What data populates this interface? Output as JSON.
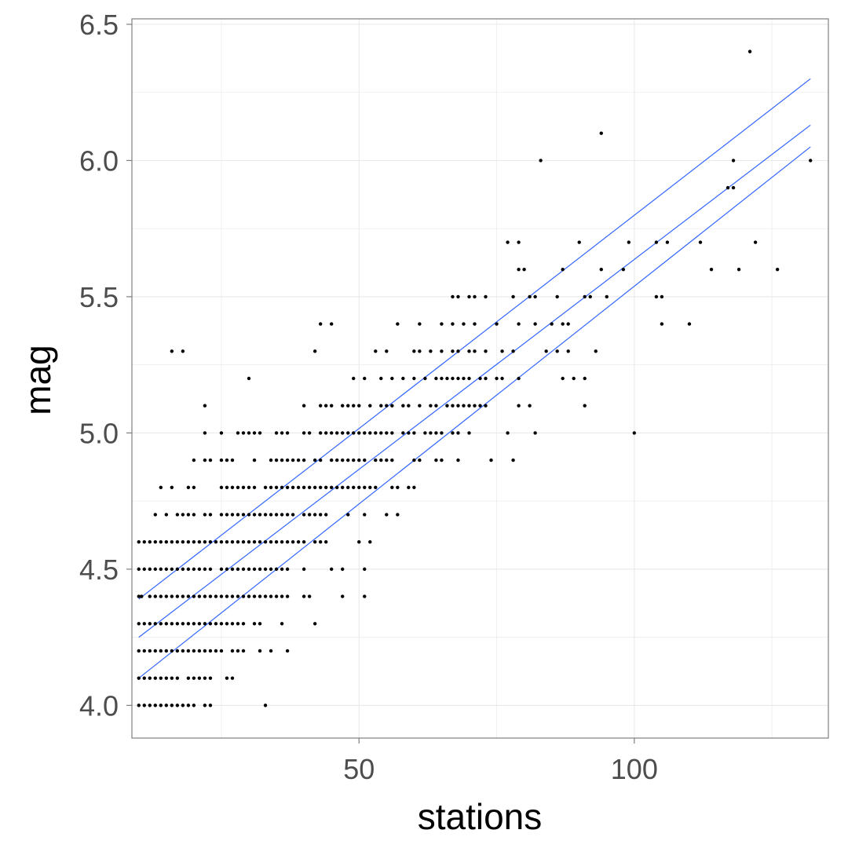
{
  "chart_data": {
    "type": "scatter",
    "title": "",
    "xlabel": "stations",
    "ylabel": "mag",
    "xlim": [
      8.75,
      135.25
    ],
    "ylim": [
      3.88,
      6.52
    ],
    "x_ticks": [
      50,
      100
    ],
    "x_tick_labels": [
      "50",
      "100"
    ],
    "y_ticks": [
      4.0,
      4.5,
      5.0,
      5.5,
      6.0,
      6.5
    ],
    "y_tick_labels": [
      "4.0",
      "4.5",
      "5.0",
      "5.5",
      "6.0",
      "6.5"
    ],
    "grid": true,
    "legend": "none",
    "colors": {
      "points": "#000000",
      "lines": "#3366ff",
      "grid": "#ebebeb",
      "border": "#7f7f7f"
    },
    "points": [
      [
        10,
        4.0
      ],
      [
        11,
        4.0
      ],
      [
        12,
        4.0
      ],
      [
        13,
        4.0
      ],
      [
        14,
        4.0
      ],
      [
        15,
        4.0
      ],
      [
        16,
        4.0
      ],
      [
        17,
        4.0
      ],
      [
        18,
        4.0
      ],
      [
        19,
        4.0
      ],
      [
        20,
        4.0
      ],
      [
        22,
        4.0
      ],
      [
        23,
        4.0
      ],
      [
        33,
        4.0
      ],
      [
        10,
        4.1
      ],
      [
        11,
        4.1
      ],
      [
        12,
        4.1
      ],
      [
        13,
        4.1
      ],
      [
        14,
        4.1
      ],
      [
        15,
        4.1
      ],
      [
        16,
        4.1
      ],
      [
        17,
        4.1
      ],
      [
        19,
        4.1
      ],
      [
        20,
        4.1
      ],
      [
        21,
        4.1
      ],
      [
        22,
        4.1
      ],
      [
        23,
        4.1
      ],
      [
        26,
        4.1
      ],
      [
        27,
        4.1
      ],
      [
        10,
        4.2
      ],
      [
        11,
        4.2
      ],
      [
        12,
        4.2
      ],
      [
        13,
        4.2
      ],
      [
        14,
        4.2
      ],
      [
        15,
        4.2
      ],
      [
        16,
        4.2
      ],
      [
        17,
        4.2
      ],
      [
        18,
        4.2
      ],
      [
        19,
        4.2
      ],
      [
        20,
        4.2
      ],
      [
        21,
        4.2
      ],
      [
        22,
        4.2
      ],
      [
        23,
        4.2
      ],
      [
        24,
        4.2
      ],
      [
        25,
        4.2
      ],
      [
        27,
        4.2
      ],
      [
        28,
        4.2
      ],
      [
        29,
        4.2
      ],
      [
        32,
        4.2
      ],
      [
        34,
        4.2
      ],
      [
        37,
        4.2
      ],
      [
        10,
        4.3
      ],
      [
        11,
        4.3
      ],
      [
        12,
        4.3
      ],
      [
        13,
        4.3
      ],
      [
        14,
        4.3
      ],
      [
        15,
        4.3
      ],
      [
        16,
        4.3
      ],
      [
        17,
        4.3
      ],
      [
        18,
        4.3
      ],
      [
        19,
        4.3
      ],
      [
        20,
        4.3
      ],
      [
        21,
        4.3
      ],
      [
        22,
        4.3
      ],
      [
        23,
        4.3
      ],
      [
        24,
        4.3
      ],
      [
        25,
        4.3
      ],
      [
        26,
        4.3
      ],
      [
        27,
        4.3
      ],
      [
        28,
        4.3
      ],
      [
        29,
        4.3
      ],
      [
        31,
        4.3
      ],
      [
        32,
        4.3
      ],
      [
        36,
        4.3
      ],
      [
        42,
        4.3
      ],
      [
        10,
        4.4
      ],
      [
        10.5,
        4.4
      ],
      [
        12,
        4.4
      ],
      [
        13,
        4.4
      ],
      [
        14,
        4.4
      ],
      [
        15,
        4.4
      ],
      [
        16,
        4.4
      ],
      [
        17,
        4.4
      ],
      [
        18,
        4.4
      ],
      [
        19,
        4.4
      ],
      [
        20,
        4.4
      ],
      [
        21,
        4.4
      ],
      [
        22,
        4.4
      ],
      [
        23,
        4.4
      ],
      [
        24,
        4.4
      ],
      [
        25,
        4.4
      ],
      [
        26,
        4.4
      ],
      [
        27,
        4.4
      ],
      [
        28,
        4.4
      ],
      [
        29,
        4.4
      ],
      [
        30,
        4.4
      ],
      [
        31,
        4.4
      ],
      [
        32,
        4.4
      ],
      [
        33,
        4.4
      ],
      [
        34,
        4.4
      ],
      [
        35,
        4.4
      ],
      [
        36,
        4.4
      ],
      [
        37,
        4.4
      ],
      [
        40,
        4.4
      ],
      [
        41,
        4.4
      ],
      [
        47,
        4.4
      ],
      [
        51,
        4.4
      ],
      [
        10,
        4.5
      ],
      [
        11,
        4.5
      ],
      [
        12,
        4.5
      ],
      [
        13,
        4.5
      ],
      [
        14,
        4.5
      ],
      [
        15,
        4.5
      ],
      [
        16,
        4.5
      ],
      [
        17,
        4.5
      ],
      [
        18,
        4.5
      ],
      [
        19,
        4.5
      ],
      [
        20,
        4.5
      ],
      [
        21,
        4.5
      ],
      [
        22,
        4.5
      ],
      [
        23,
        4.5
      ],
      [
        25,
        4.5
      ],
      [
        26,
        4.5
      ],
      [
        27,
        4.5
      ],
      [
        28,
        4.5
      ],
      [
        29,
        4.5
      ],
      [
        30,
        4.5
      ],
      [
        31,
        4.5
      ],
      [
        32,
        4.5
      ],
      [
        33,
        4.5
      ],
      [
        34,
        4.5
      ],
      [
        35,
        4.5
      ],
      [
        36,
        4.5
      ],
      [
        37,
        4.5
      ],
      [
        40,
        4.5
      ],
      [
        45,
        4.5
      ],
      [
        47,
        4.5
      ],
      [
        51,
        4.5
      ],
      [
        10,
        4.6
      ],
      [
        11,
        4.6
      ],
      [
        12,
        4.6
      ],
      [
        13,
        4.6
      ],
      [
        14,
        4.6
      ],
      [
        15,
        4.6
      ],
      [
        16,
        4.6
      ],
      [
        17,
        4.6
      ],
      [
        18,
        4.6
      ],
      [
        19,
        4.6
      ],
      [
        20,
        4.6
      ],
      [
        21,
        4.6
      ],
      [
        22,
        4.6
      ],
      [
        23,
        4.6
      ],
      [
        24,
        4.6
      ],
      [
        25,
        4.6
      ],
      [
        26,
        4.6
      ],
      [
        27,
        4.6
      ],
      [
        28,
        4.6
      ],
      [
        29,
        4.6
      ],
      [
        30,
        4.6
      ],
      [
        31,
        4.6
      ],
      [
        32,
        4.6
      ],
      [
        33,
        4.6
      ],
      [
        34,
        4.6
      ],
      [
        35,
        4.6
      ],
      [
        36,
        4.6
      ],
      [
        37,
        4.6
      ],
      [
        38,
        4.6
      ],
      [
        39,
        4.6
      ],
      [
        40,
        4.6
      ],
      [
        42,
        4.6
      ],
      [
        43,
        4.6
      ],
      [
        44,
        4.6
      ],
      [
        50,
        4.6
      ],
      [
        52,
        4.6
      ],
      [
        13,
        4.7
      ],
      [
        15,
        4.7
      ],
      [
        17,
        4.7
      ],
      [
        18,
        4.7
      ],
      [
        19,
        4.7
      ],
      [
        20,
        4.7
      ],
      [
        22,
        4.7
      ],
      [
        23,
        4.7
      ],
      [
        25,
        4.7
      ],
      [
        26,
        4.7
      ],
      [
        27,
        4.7
      ],
      [
        28,
        4.7
      ],
      [
        29,
        4.7
      ],
      [
        30,
        4.7
      ],
      [
        31,
        4.7
      ],
      [
        32,
        4.7
      ],
      [
        33,
        4.7
      ],
      [
        34,
        4.7
      ],
      [
        35,
        4.7
      ],
      [
        36,
        4.7
      ],
      [
        37,
        4.7
      ],
      [
        38,
        4.7
      ],
      [
        40,
        4.7
      ],
      [
        41,
        4.7
      ],
      [
        42,
        4.7
      ],
      [
        43,
        4.7
      ],
      [
        44,
        4.7
      ],
      [
        48,
        4.7
      ],
      [
        51,
        4.7
      ],
      [
        55,
        4.7
      ],
      [
        57,
        4.7
      ],
      [
        14,
        4.8
      ],
      [
        16,
        4.8
      ],
      [
        19,
        4.8
      ],
      [
        20,
        4.8
      ],
      [
        25,
        4.8
      ],
      [
        26,
        4.8
      ],
      [
        27,
        4.8
      ],
      [
        28,
        4.8
      ],
      [
        29,
        4.8
      ],
      [
        30,
        4.8
      ],
      [
        31,
        4.8
      ],
      [
        33,
        4.8
      ],
      [
        34,
        4.8
      ],
      [
        35,
        4.8
      ],
      [
        36,
        4.8
      ],
      [
        37,
        4.8
      ],
      [
        38,
        4.8
      ],
      [
        39,
        4.8
      ],
      [
        40,
        4.8
      ],
      [
        41,
        4.8
      ],
      [
        42,
        4.8
      ],
      [
        43,
        4.8
      ],
      [
        44,
        4.8
      ],
      [
        45,
        4.8
      ],
      [
        46,
        4.8
      ],
      [
        47,
        4.8
      ],
      [
        48,
        4.8
      ],
      [
        49,
        4.8
      ],
      [
        50,
        4.8
      ],
      [
        51,
        4.8
      ],
      [
        52,
        4.8
      ],
      [
        53,
        4.8
      ],
      [
        56,
        4.8
      ],
      [
        57,
        4.8
      ],
      [
        59,
        4.8
      ],
      [
        60,
        4.8
      ],
      [
        20,
        4.9
      ],
      [
        22,
        4.9
      ],
      [
        23,
        4.9
      ],
      [
        25,
        4.9
      ],
      [
        26,
        4.9
      ],
      [
        27,
        4.9
      ],
      [
        31,
        4.9
      ],
      [
        34,
        4.9
      ],
      [
        35,
        4.9
      ],
      [
        36,
        4.9
      ],
      [
        37,
        4.9
      ],
      [
        38,
        4.9
      ],
      [
        39,
        4.9
      ],
      [
        40,
        4.9
      ],
      [
        42,
        4.9
      ],
      [
        43,
        4.9
      ],
      [
        45,
        4.9
      ],
      [
        46,
        4.9
      ],
      [
        47,
        4.9
      ],
      [
        48,
        4.9
      ],
      [
        49,
        4.9
      ],
      [
        50,
        4.9
      ],
      [
        51,
        4.9
      ],
      [
        53,
        4.9
      ],
      [
        54,
        4.9
      ],
      [
        55,
        4.9
      ],
      [
        56,
        4.9
      ],
      [
        60,
        4.9
      ],
      [
        61,
        4.9
      ],
      [
        64,
        4.9
      ],
      [
        65,
        4.9
      ],
      [
        68,
        4.9
      ],
      [
        74,
        4.9
      ],
      [
        78,
        4.9
      ],
      [
        22,
        5.0
      ],
      [
        25,
        5.0
      ],
      [
        28,
        5.0
      ],
      [
        29,
        5.0
      ],
      [
        30,
        5.0
      ],
      [
        31,
        5.0
      ],
      [
        32,
        5.0
      ],
      [
        35,
        5.0
      ],
      [
        36,
        5.0
      ],
      [
        37,
        5.0
      ],
      [
        40,
        5.0
      ],
      [
        41,
        5.0
      ],
      [
        43,
        5.0
      ],
      [
        44,
        5.0
      ],
      [
        45,
        5.0
      ],
      [
        46,
        5.0
      ],
      [
        47,
        5.0
      ],
      [
        48,
        5.0
      ],
      [
        49,
        5.0
      ],
      [
        50,
        5.0
      ],
      [
        51,
        5.0
      ],
      [
        52,
        5.0
      ],
      [
        53,
        5.0
      ],
      [
        54,
        5.0
      ],
      [
        55,
        5.0
      ],
      [
        56,
        5.0
      ],
      [
        58,
        5.0
      ],
      [
        59,
        5.0
      ],
      [
        60,
        5.0
      ],
      [
        62,
        5.0
      ],
      [
        63,
        5.0
      ],
      [
        64,
        5.0
      ],
      [
        65,
        5.0
      ],
      [
        67,
        5.0
      ],
      [
        68,
        5.0
      ],
      [
        70,
        5.0
      ],
      [
        77,
        5.0
      ],
      [
        82,
        5.0
      ],
      [
        100,
        5.0
      ],
      [
        22,
        5.1
      ],
      [
        40,
        5.1
      ],
      [
        43,
        5.1
      ],
      [
        44,
        5.1
      ],
      [
        45,
        5.1
      ],
      [
        47,
        5.1
      ],
      [
        48,
        5.1
      ],
      [
        49,
        5.1
      ],
      [
        50,
        5.1
      ],
      [
        52,
        5.1
      ],
      [
        54,
        5.1
      ],
      [
        55,
        5.1
      ],
      [
        56,
        5.1
      ],
      [
        58,
        5.1
      ],
      [
        59,
        5.1
      ],
      [
        61,
        5.1
      ],
      [
        63,
        5.1
      ],
      [
        64,
        5.1
      ],
      [
        66,
        5.1
      ],
      [
        67,
        5.1
      ],
      [
        68,
        5.1
      ],
      [
        69,
        5.1
      ],
      [
        70,
        5.1
      ],
      [
        71,
        5.1
      ],
      [
        72,
        5.1
      ],
      [
        73,
        5.1
      ],
      [
        79,
        5.1
      ],
      [
        81,
        5.1
      ],
      [
        91,
        5.1
      ],
      [
        30,
        5.2
      ],
      [
        49,
        5.2
      ],
      [
        51,
        5.2
      ],
      [
        54,
        5.2
      ],
      [
        56,
        5.2
      ],
      [
        58,
        5.2
      ],
      [
        60,
        5.2
      ],
      [
        62,
        5.2
      ],
      [
        64,
        5.2
      ],
      [
        65,
        5.2
      ],
      [
        66,
        5.2
      ],
      [
        67,
        5.2
      ],
      [
        68,
        5.2
      ],
      [
        69,
        5.2
      ],
      [
        70,
        5.2
      ],
      [
        72,
        5.2
      ],
      [
        73,
        5.2
      ],
      [
        75,
        5.2
      ],
      [
        76,
        5.2
      ],
      [
        79,
        5.2
      ],
      [
        87,
        5.2
      ],
      [
        89,
        5.2
      ],
      [
        91,
        5.2
      ],
      [
        16,
        5.3
      ],
      [
        18,
        5.3
      ],
      [
        42,
        5.3
      ],
      [
        53,
        5.3
      ],
      [
        55,
        5.3
      ],
      [
        60,
        5.3
      ],
      [
        61,
        5.3
      ],
      [
        63,
        5.3
      ],
      [
        65,
        5.3
      ],
      [
        67,
        5.3
      ],
      [
        68,
        5.3
      ],
      [
        70,
        5.3
      ],
      [
        71,
        5.3
      ],
      [
        73,
        5.3
      ],
      [
        76,
        5.3
      ],
      [
        78,
        5.3
      ],
      [
        84,
        5.3
      ],
      [
        86,
        5.3
      ],
      [
        88,
        5.3
      ],
      [
        93,
        5.3
      ],
      [
        43,
        5.4
      ],
      [
        45,
        5.4
      ],
      [
        57,
        5.4
      ],
      [
        61,
        5.4
      ],
      [
        65,
        5.4
      ],
      [
        67,
        5.4
      ],
      [
        69,
        5.4
      ],
      [
        71,
        5.4
      ],
      [
        75,
        5.4
      ],
      [
        79,
        5.4
      ],
      [
        82,
        5.4
      ],
      [
        85,
        5.4
      ],
      [
        87,
        5.4
      ],
      [
        88,
        5.4
      ],
      [
        105,
        5.4
      ],
      [
        110,
        5.4
      ],
      [
        67,
        5.5
      ],
      [
        68,
        5.5
      ],
      [
        70,
        5.5
      ],
      [
        71,
        5.5
      ],
      [
        73,
        5.5
      ],
      [
        78,
        5.5
      ],
      [
        81,
        5.5
      ],
      [
        82,
        5.5
      ],
      [
        86,
        5.5
      ],
      [
        91,
        5.5
      ],
      [
        92,
        5.5
      ],
      [
        95,
        5.5
      ],
      [
        104,
        5.5
      ],
      [
        105,
        5.5
      ],
      [
        79,
        5.6
      ],
      [
        80,
        5.6
      ],
      [
        87,
        5.6
      ],
      [
        94,
        5.6
      ],
      [
        98,
        5.6
      ],
      [
        114,
        5.6
      ],
      [
        119,
        5.6
      ],
      [
        126,
        5.6
      ],
      [
        77,
        5.7
      ],
      [
        79,
        5.7
      ],
      [
        90,
        5.7
      ],
      [
        99,
        5.7
      ],
      [
        104,
        5.7
      ],
      [
        106,
        5.7
      ],
      [
        112,
        5.7
      ],
      [
        122,
        5.7
      ],
      [
        117,
        5.9
      ],
      [
        118,
        5.9
      ],
      [
        83,
        6.0
      ],
      [
        118,
        6.0
      ],
      [
        132,
        6.0
      ],
      [
        94,
        6.1
      ],
      [
        121,
        6.4
      ]
    ],
    "lines": [
      {
        "x": [
          10,
          132
        ],
        "y": [
          4.39,
          6.3
        ]
      },
      {
        "x": [
          10,
          132
        ],
        "y": [
          4.25,
          6.13
        ]
      },
      {
        "x": [
          10,
          132
        ],
        "y": [
          4.1,
          6.05
        ]
      }
    ]
  }
}
